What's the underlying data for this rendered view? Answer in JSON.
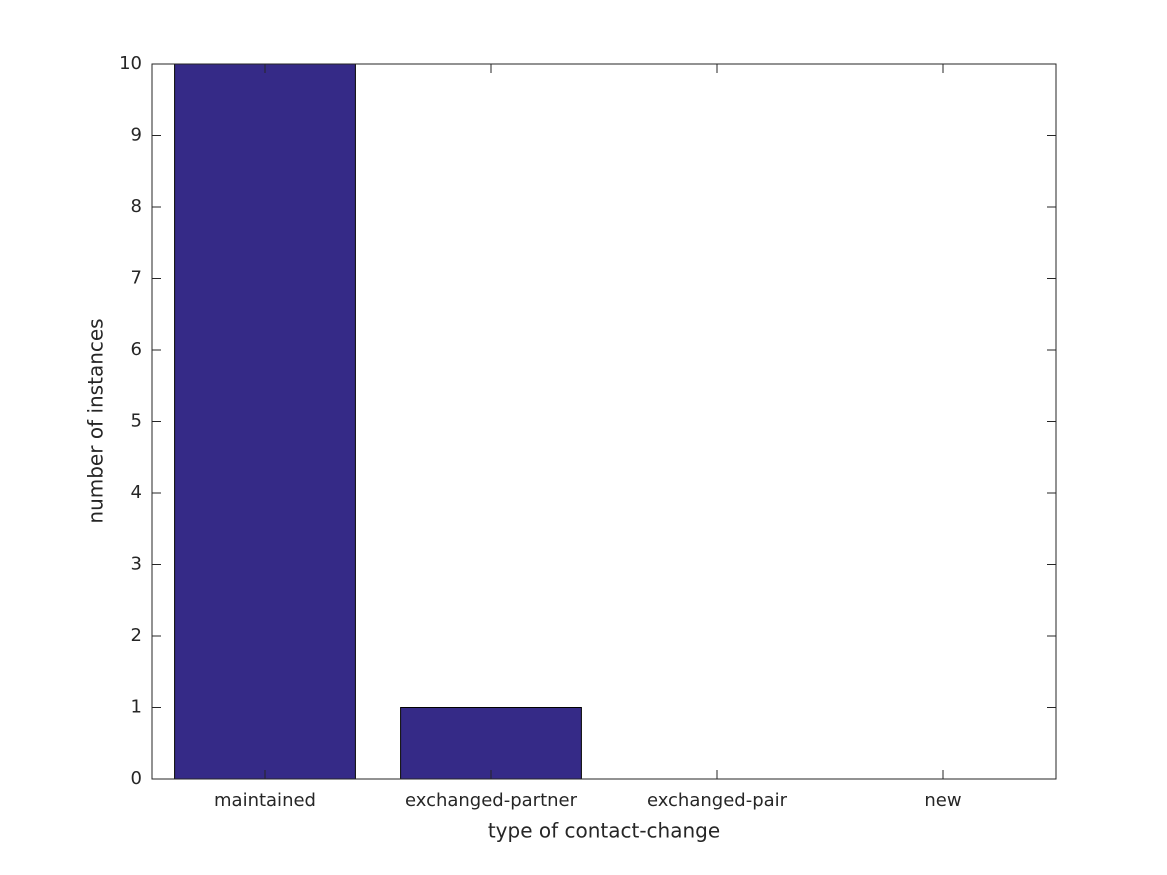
{
  "chart_data": {
    "type": "bar",
    "x_label": "type of contact-change",
    "y_label": "number of instances",
    "categories": [
      "maintained",
      "exchanged-partner",
      "exchanged-pair",
      "new"
    ],
    "values": [
      10,
      1,
      0,
      0
    ],
    "color": "#352a87",
    "ylim": [
      0,
      10
    ],
    "yticks": [
      0,
      1,
      2,
      3,
      4,
      5,
      6,
      7,
      8,
      9,
      10
    ],
    "grid": false
  }
}
